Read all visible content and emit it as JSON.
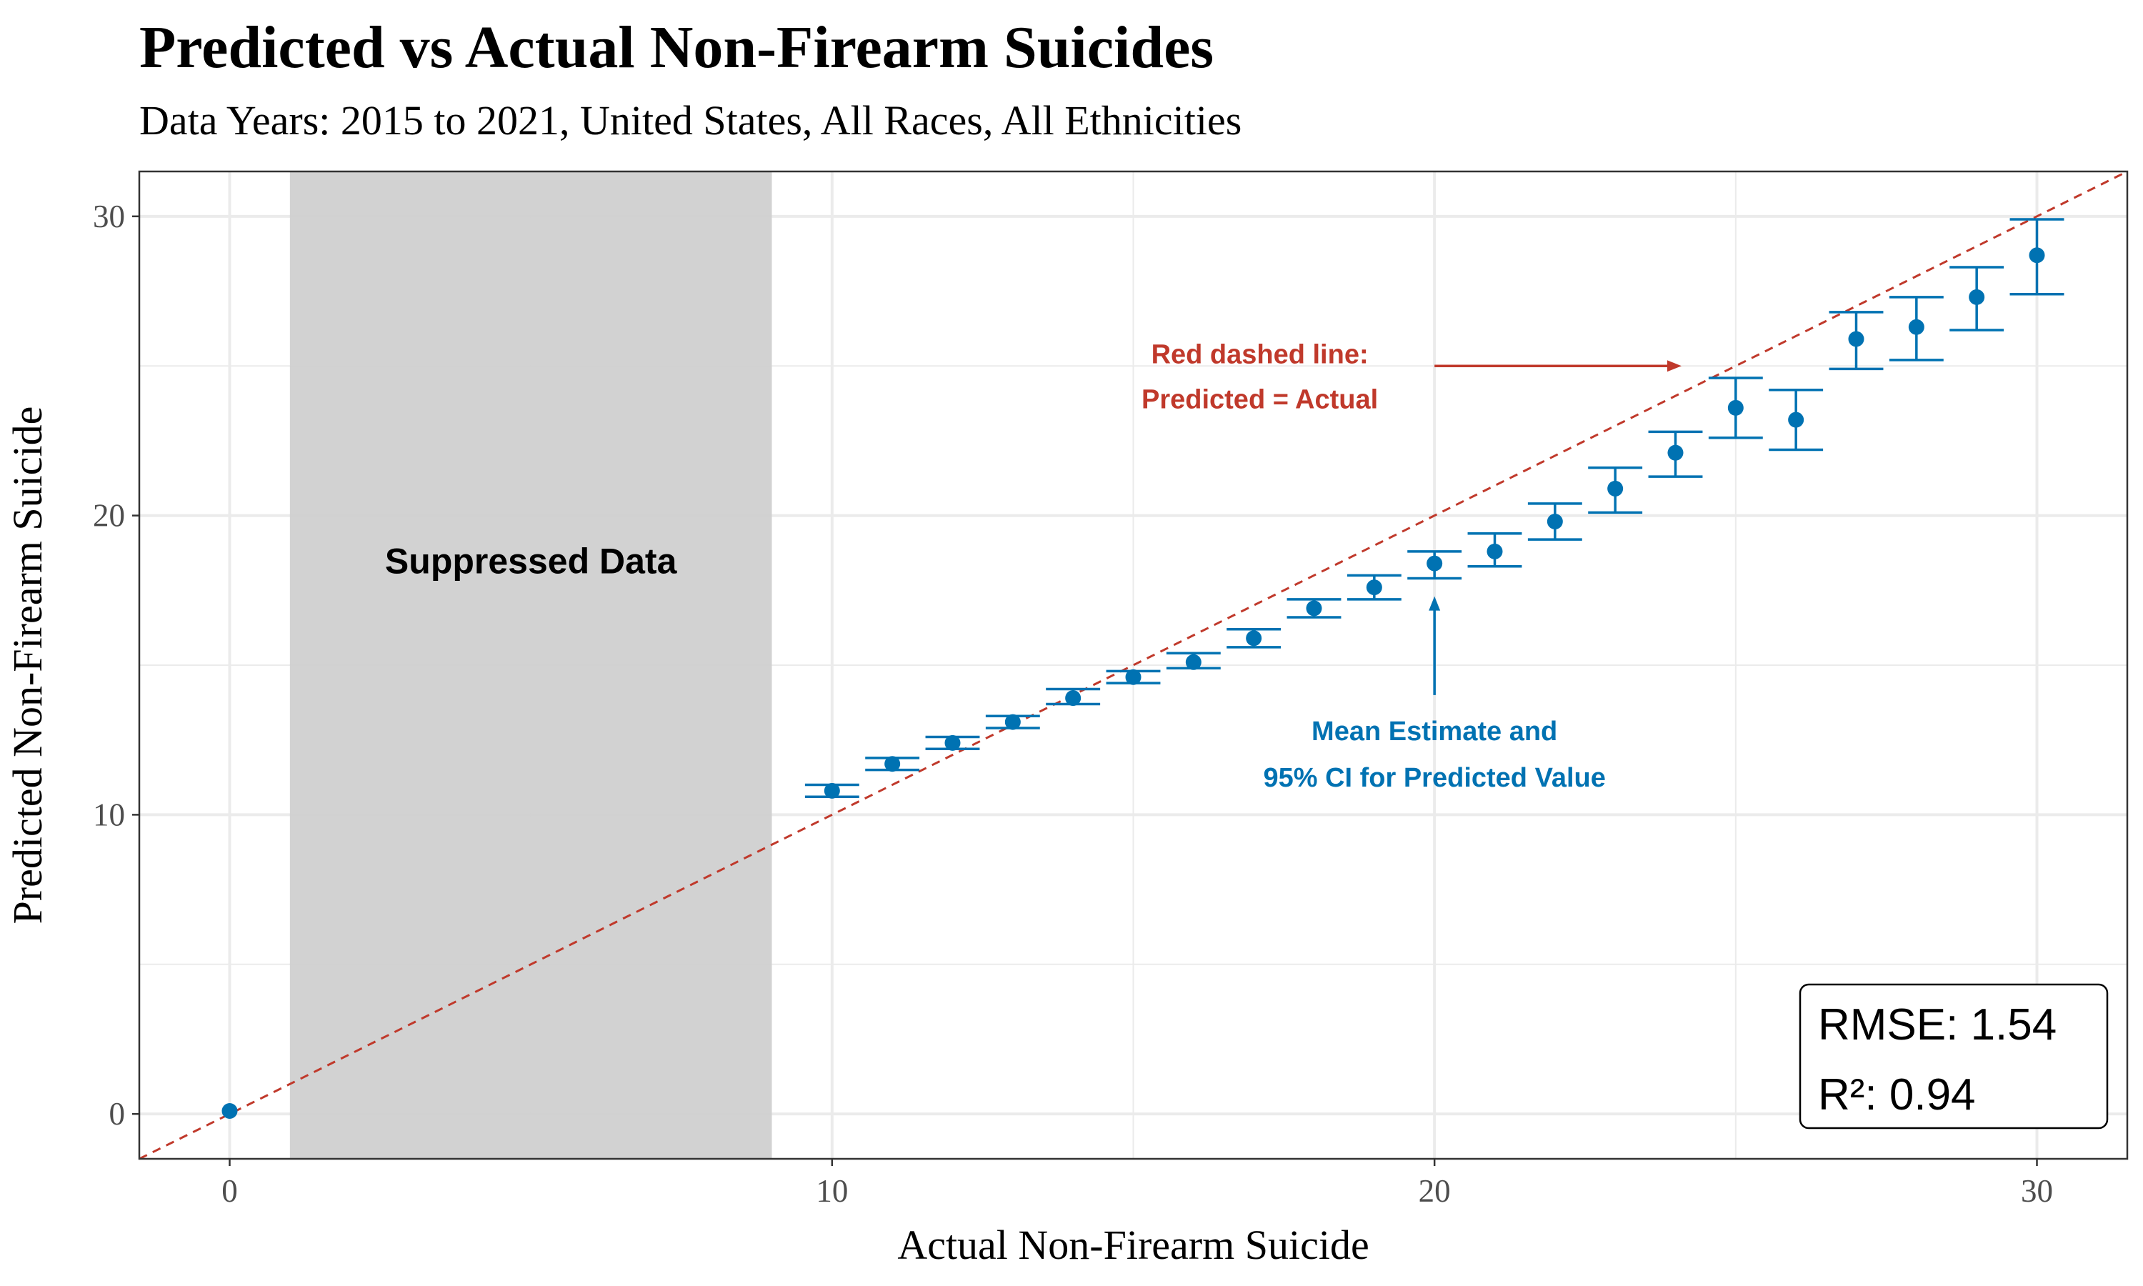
{
  "title": "Predicted vs Actual Non-Firearm Suicides",
  "subtitle": "Data Years: 2015 to 2021, United States, All Races, All Ethnicities",
  "colors": {
    "point": "#0072B2",
    "reference_line": "#C0392B",
    "suppressed_band": "#D0D0D0",
    "grid": "#EBEBEB",
    "panel_border": "#333333"
  },
  "annotations": {
    "red_line_1": "Red dashed line:",
    "red_line_2": "Predicted = Actual",
    "blue_1": "Mean Estimate and",
    "blue_2": "95% CI for Predicted Value",
    "suppressed": "Suppressed Data"
  },
  "stats": {
    "rmse": "RMSE: 1.54",
    "r2": "R²: 0.94"
  },
  "chart_data": {
    "type": "scatter",
    "title": "Predicted vs Actual Non-Firearm Suicides",
    "subtitle": "Data Years: 2015 to 2021, United States, All Races, All Ethnicities",
    "xlabel": "Actual Non-Firearm Suicide",
    "ylabel": "Predicted Non-Firearm Suicide",
    "xlim": [
      -1.5,
      31.5
    ],
    "ylim": [
      -1.5,
      31.5
    ],
    "x_ticks": [
      0,
      10,
      20,
      30
    ],
    "y_ticks": [
      0,
      10,
      20,
      30
    ],
    "grid": true,
    "reference_line": {
      "slope": 1,
      "intercept": 0,
      "style": "dashed"
    },
    "suppressed_range": [
      1,
      9
    ],
    "points": [
      {
        "x": 0,
        "y": 0.1,
        "lo": null,
        "hi": null
      },
      {
        "x": 10,
        "y": 10.8,
        "lo": 10.6,
        "hi": 11.0
      },
      {
        "x": 11,
        "y": 11.7,
        "lo": 11.5,
        "hi": 11.9
      },
      {
        "x": 12,
        "y": 12.4,
        "lo": 12.2,
        "hi": 12.6
      },
      {
        "x": 13,
        "y": 13.1,
        "lo": 12.9,
        "hi": 13.3
      },
      {
        "x": 14,
        "y": 13.9,
        "lo": 13.7,
        "hi": 14.2
      },
      {
        "x": 15,
        "y": 14.6,
        "lo": 14.4,
        "hi": 14.8
      },
      {
        "x": 16,
        "y": 15.1,
        "lo": 14.9,
        "hi": 15.4
      },
      {
        "x": 17,
        "y": 15.9,
        "lo": 15.6,
        "hi": 16.2
      },
      {
        "x": 18,
        "y": 16.9,
        "lo": 16.6,
        "hi": 17.2
      },
      {
        "x": 19,
        "y": 17.6,
        "lo": 17.2,
        "hi": 18.0
      },
      {
        "x": 20,
        "y": 18.4,
        "lo": 17.9,
        "hi": 18.8
      },
      {
        "x": 21,
        "y": 18.8,
        "lo": 18.3,
        "hi": 19.4
      },
      {
        "x": 22,
        "y": 19.8,
        "lo": 19.2,
        "hi": 20.4
      },
      {
        "x": 23,
        "y": 20.9,
        "lo": 20.1,
        "hi": 21.6
      },
      {
        "x": 24,
        "y": 22.1,
        "lo": 21.3,
        "hi": 22.8
      },
      {
        "x": 25,
        "y": 23.6,
        "lo": 22.6,
        "hi": 24.6
      },
      {
        "x": 26,
        "y": 23.2,
        "lo": 22.2,
        "hi": 24.2
      },
      {
        "x": 27,
        "y": 25.9,
        "lo": 24.9,
        "hi": 26.8
      },
      {
        "x": 28,
        "y": 26.3,
        "lo": 25.2,
        "hi": 27.3
      },
      {
        "x": 29,
        "y": 27.3,
        "lo": 26.2,
        "hi": 28.3
      },
      {
        "x": 30,
        "y": 28.7,
        "lo": 27.4,
        "hi": 29.9
      }
    ]
  }
}
